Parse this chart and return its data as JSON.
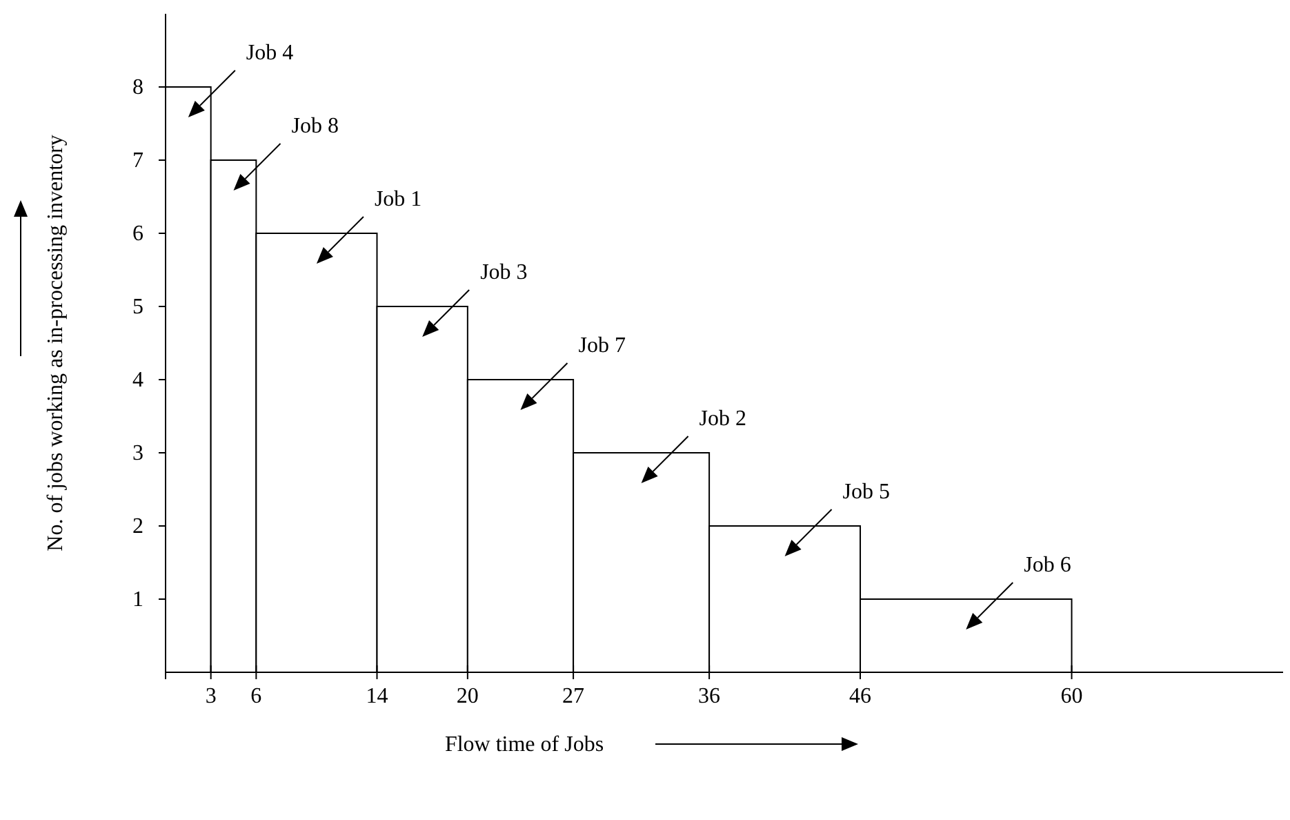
{
  "chart_data": {
    "type": "histogram",
    "xlabel": "Flow time of Jobs",
    "ylabel": "No. of jobs working as in-processing inventory",
    "bins": [
      0,
      3,
      6,
      14,
      20,
      27,
      36,
      46,
      60
    ],
    "values": [
      8,
      7,
      6,
      5,
      4,
      3,
      2,
      1
    ],
    "color": "#ffffff",
    "xlim": [
      0,
      74
    ],
    "ylim": [
      0,
      9
    ],
    "xticks": [
      {
        "value": 0,
        "label": null
      },
      3,
      6,
      14,
      20,
      27,
      36,
      46,
      60
    ],
    "yticks": [
      1,
      2,
      3,
      4,
      5,
      6,
      7,
      8
    ],
    "annotations": [
      "Job 4",
      "Job 8",
      "Job 1",
      "Job 3",
      "Job 7",
      "Job 2",
      "Job 5",
      "Job 6"
    ]
  }
}
